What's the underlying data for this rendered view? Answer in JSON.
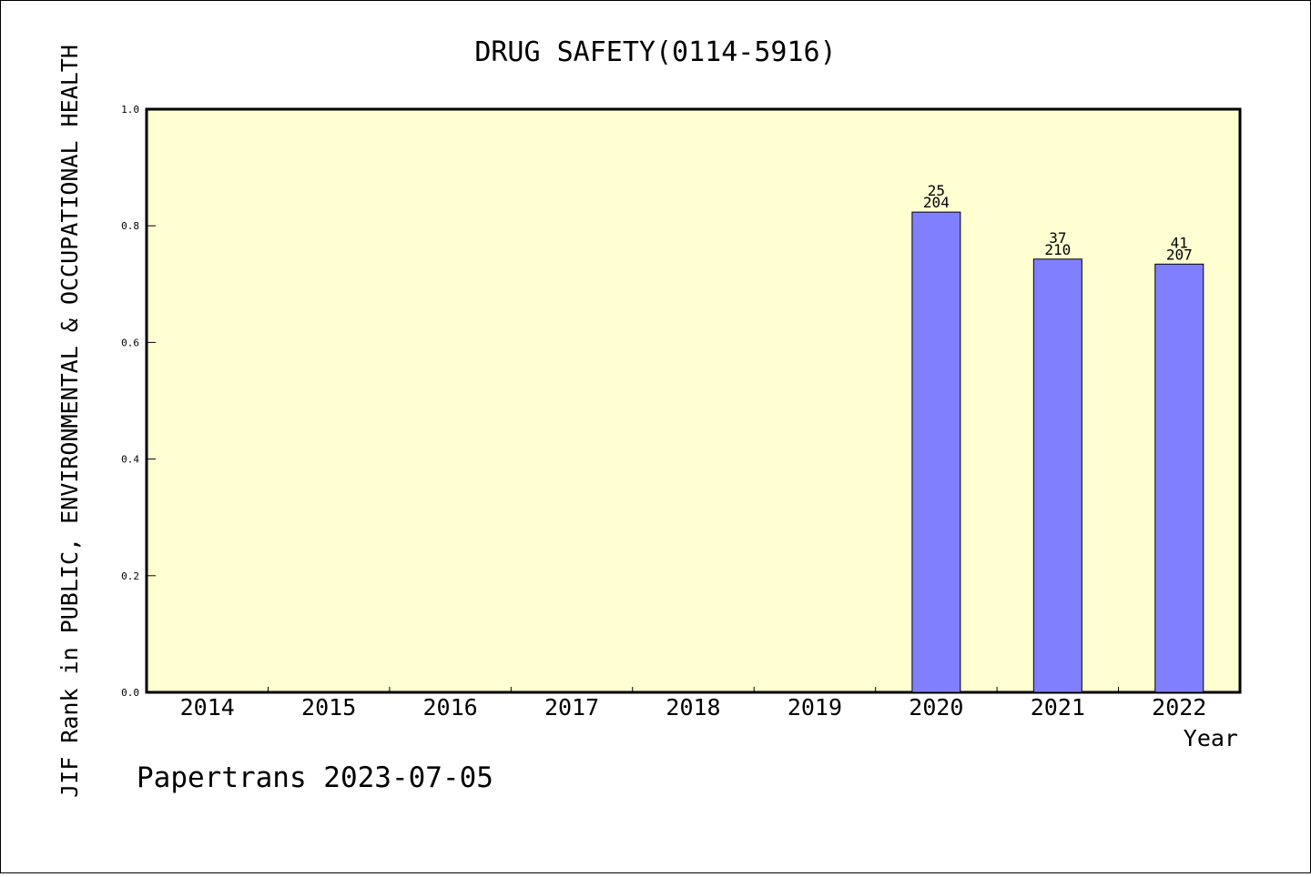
{
  "chart_data": {
    "type": "bar",
    "title": "DRUG SAFETY(0114-5916)",
    "xlabel": "Year",
    "ylabel": "JIF Rank in PUBLIC, ENVIRONMENTAL & OCCUPATIONAL HEALTH",
    "ylim": [
      0,
      1.0
    ],
    "yticks": [
      "0.0",
      "0.2",
      "0.4",
      "0.6",
      "0.8",
      "1.0"
    ],
    "categories": [
      "2014",
      "2015",
      "2016",
      "2017",
      "2018",
      "2019",
      "2020",
      "2021",
      "2022"
    ],
    "values": [
      null,
      null,
      null,
      null,
      null,
      null,
      0.8235,
      0.7429,
      0.7343
    ],
    "ranks": [
      null,
      null,
      null,
      null,
      null,
      null,
      "25",
      "37",
      "41"
    ],
    "totals": [
      null,
      null,
      null,
      null,
      null,
      null,
      "204",
      "210",
      "207"
    ],
    "grid": false,
    "colors": {
      "plot_background": "#ffffd2",
      "bar": "#8080ff",
      "axis": "#000000"
    }
  },
  "footer": {
    "credit": "Papertrans 2023-07-05"
  }
}
